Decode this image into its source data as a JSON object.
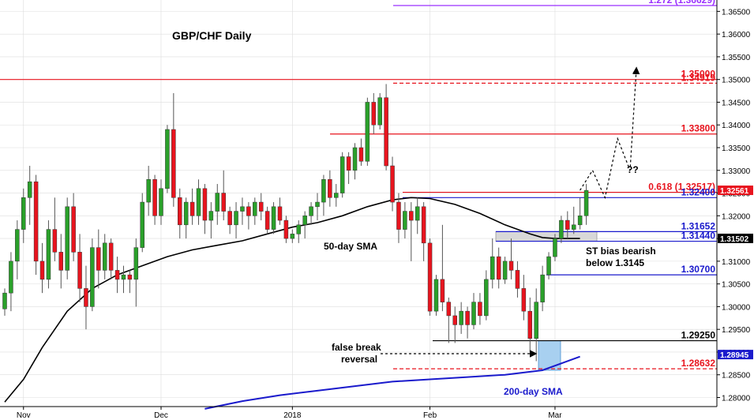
{
  "chart_data": {
    "type": "candlestick",
    "title": "GBP/CHF Daily",
    "ylim": [
      1.278,
      1.3675
    ],
    "yticks": [
      "1.28000",
      "1.28500",
      "1.29000",
      "1.29500",
      "1.30000",
      "1.30500",
      "1.31000",
      "1.31500",
      "1.32000",
      "1.32500",
      "1.33000",
      "1.33500",
      "1.34000",
      "1.34500",
      "1.35000",
      "1.35500",
      "1.36000",
      "1.36500"
    ],
    "xticks": [
      {
        "label": "Nov",
        "index": 3
      },
      {
        "label": "Dec",
        "index": 25
      },
      {
        "label": "2018",
        "index": 46
      },
      {
        "label": "Feb",
        "index": 68
      },
      {
        "label": "Mar",
        "index": 88
      }
    ],
    "candles": [
      {
        "o": 1.2995,
        "h": 1.304,
        "l": 1.298,
        "c": 1.303
      },
      {
        "o": 1.303,
        "h": 1.312,
        "l": 1.299,
        "c": 1.31
      },
      {
        "o": 1.31,
        "h": 1.319,
        "l": 1.306,
        "c": 1.317
      },
      {
        "o": 1.317,
        "h": 1.326,
        "l": 1.314,
        "c": 1.324
      },
      {
        "o": 1.324,
        "h": 1.331,
        "l": 1.318,
        "c": 1.3275
      },
      {
        "o": 1.3275,
        "h": 1.329,
        "l": 1.307,
        "c": 1.31
      },
      {
        "o": 1.31,
        "h": 1.314,
        "l": 1.303,
        "c": 1.306
      },
      {
        "o": 1.306,
        "h": 1.319,
        "l": 1.304,
        "c": 1.317
      },
      {
        "o": 1.317,
        "h": 1.324,
        "l": 1.31,
        "c": 1.312
      },
      {
        "o": 1.312,
        "h": 1.316,
        "l": 1.304,
        "c": 1.308
      },
      {
        "o": 1.308,
        "h": 1.324,
        "l": 1.306,
        "c": 1.322
      },
      {
        "o": 1.322,
        "h": 1.325,
        "l": 1.31,
        "c": 1.312
      },
      {
        "o": 1.312,
        "h": 1.316,
        "l": 1.301,
        "c": 1.304
      },
      {
        "o": 1.304,
        "h": 1.309,
        "l": 1.295,
        "c": 1.3
      },
      {
        "o": 1.3,
        "h": 1.315,
        "l": 1.299,
        "c": 1.313
      },
      {
        "o": 1.313,
        "h": 1.317,
        "l": 1.304,
        "c": 1.308
      },
      {
        "o": 1.308,
        "h": 1.316,
        "l": 1.306,
        "c": 1.314
      },
      {
        "o": 1.314,
        "h": 1.315,
        "l": 1.306,
        "c": 1.308
      },
      {
        "o": 1.308,
        "h": 1.311,
        "l": 1.303,
        "c": 1.306
      },
      {
        "o": 1.306,
        "h": 1.309,
        "l": 1.303,
        "c": 1.307
      },
      {
        "o": 1.307,
        "h": 1.308,
        "l": 1.303,
        "c": 1.306
      },
      {
        "o": 1.306,
        "h": 1.315,
        "l": 1.3,
        "c": 1.313
      },
      {
        "o": 1.313,
        "h": 1.325,
        "l": 1.312,
        "c": 1.323
      },
      {
        "o": 1.323,
        "h": 1.331,
        "l": 1.32,
        "c": 1.328
      },
      {
        "o": 1.328,
        "h": 1.329,
        "l": 1.318,
        "c": 1.32
      },
      {
        "o": 1.32,
        "h": 1.328,
        "l": 1.318,
        "c": 1.326
      },
      {
        "o": 1.326,
        "h": 1.34,
        "l": 1.325,
        "c": 1.339
      },
      {
        "o": 1.339,
        "h": 1.347,
        "l": 1.322,
        "c": 1.324
      },
      {
        "o": 1.324,
        "h": 1.326,
        "l": 1.315,
        "c": 1.318
      },
      {
        "o": 1.318,
        "h": 1.324,
        "l": 1.315,
        "c": 1.323
      },
      {
        "o": 1.323,
        "h": 1.326,
        "l": 1.318,
        "c": 1.32
      },
      {
        "o": 1.32,
        "h": 1.328,
        "l": 1.318,
        "c": 1.326
      },
      {
        "o": 1.326,
        "h": 1.327,
        "l": 1.316,
        "c": 1.319
      },
      {
        "o": 1.319,
        "h": 1.323,
        "l": 1.315,
        "c": 1.321
      },
      {
        "o": 1.321,
        "h": 1.327,
        "l": 1.318,
        "c": 1.325
      },
      {
        "o": 1.325,
        "h": 1.33,
        "l": 1.319,
        "c": 1.321
      },
      {
        "o": 1.321,
        "h": 1.322,
        "l": 1.316,
        "c": 1.318
      },
      {
        "o": 1.318,
        "h": 1.323,
        "l": 1.315,
        "c": 1.321
      },
      {
        "o": 1.321,
        "h": 1.324,
        "l": 1.318,
        "c": 1.322
      },
      {
        "o": 1.322,
        "h": 1.323,
        "l": 1.317,
        "c": 1.32
      },
      {
        "o": 1.32,
        "h": 1.324,
        "l": 1.318,
        "c": 1.323
      },
      {
        "o": 1.323,
        "h": 1.325,
        "l": 1.319,
        "c": 1.321
      },
      {
        "o": 1.321,
        "h": 1.322,
        "l": 1.316,
        "c": 1.317
      },
      {
        "o": 1.317,
        "h": 1.323,
        "l": 1.316,
        "c": 1.322
      },
      {
        "o": 1.322,
        "h": 1.324,
        "l": 1.318,
        "c": 1.319
      },
      {
        "o": 1.319,
        "h": 1.32,
        "l": 1.314,
        "c": 1.315
      },
      {
        "o": 1.315,
        "h": 1.317,
        "l": 1.314,
        "c": 1.316
      },
      {
        "o": 1.316,
        "h": 1.319,
        "l": 1.314,
        "c": 1.318
      },
      {
        "o": 1.318,
        "h": 1.321,
        "l": 1.315,
        "c": 1.32
      },
      {
        "o": 1.32,
        "h": 1.323,
        "l": 1.318,
        "c": 1.322
      },
      {
        "o": 1.322,
        "h": 1.325,
        "l": 1.319,
        "c": 1.323
      },
      {
        "o": 1.323,
        "h": 1.329,
        "l": 1.32,
        "c": 1.328
      },
      {
        "o": 1.328,
        "h": 1.33,
        "l": 1.322,
        "c": 1.324
      },
      {
        "o": 1.324,
        "h": 1.327,
        "l": 1.322,
        "c": 1.325
      },
      {
        "o": 1.325,
        "h": 1.334,
        "l": 1.324,
        "c": 1.333
      },
      {
        "o": 1.333,
        "h": 1.334,
        "l": 1.327,
        "c": 1.33
      },
      {
        "o": 1.33,
        "h": 1.336,
        "l": 1.328,
        "c": 1.335
      },
      {
        "o": 1.335,
        "h": 1.337,
        "l": 1.331,
        "c": 1.332
      },
      {
        "o": 1.332,
        "h": 1.346,
        "l": 1.331,
        "c": 1.345
      },
      {
        "o": 1.345,
        "h": 1.347,
        "l": 1.338,
        "c": 1.34
      },
      {
        "o": 1.34,
        "h": 1.347,
        "l": 1.339,
        "c": 1.346
      },
      {
        "o": 1.346,
        "h": 1.349,
        "l": 1.33,
        "c": 1.331
      },
      {
        "o": 1.331,
        "h": 1.333,
        "l": 1.321,
        "c": 1.323
      },
      {
        "o": 1.323,
        "h": 1.325,
        "l": 1.314,
        "c": 1.317
      },
      {
        "o": 1.317,
        "h": 1.323,
        "l": 1.315,
        "c": 1.321
      },
      {
        "o": 1.321,
        "h": 1.323,
        "l": 1.31,
        "c": 1.319
      },
      {
        "o": 1.319,
        "h": 1.324,
        "l": 1.316,
        "c": 1.322
      },
      {
        "o": 1.322,
        "h": 1.323,
        "l": 1.31,
        "c": 1.314
      },
      {
        "o": 1.314,
        "h": 1.315,
        "l": 1.298,
        "c": 1.299
      },
      {
        "o": 1.299,
        "h": 1.307,
        "l": 1.298,
        "c": 1.306
      },
      {
        "o": 1.306,
        "h": 1.318,
        "l": 1.299,
        "c": 1.301
      },
      {
        "o": 1.301,
        "h": 1.302,
        "l": 1.292,
        "c": 1.298
      },
      {
        "o": 1.298,
        "h": 1.3,
        "l": 1.292,
        "c": 1.296
      },
      {
        "o": 1.296,
        "h": 1.301,
        "l": 1.294,
        "c": 1.299
      },
      {
        "o": 1.299,
        "h": 1.3,
        "l": 1.293,
        "c": 1.296
      },
      {
        "o": 1.296,
        "h": 1.303,
        "l": 1.295,
        "c": 1.301
      },
      {
        "o": 1.301,
        "h": 1.303,
        "l": 1.296,
        "c": 1.298
      },
      {
        "o": 1.298,
        "h": 1.308,
        "l": 1.297,
        "c": 1.306
      },
      {
        "o": 1.306,
        "h": 1.315,
        "l": 1.304,
        "c": 1.311
      },
      {
        "o": 1.311,
        "h": 1.313,
        "l": 1.304,
        "c": 1.306
      },
      {
        "o": 1.306,
        "h": 1.311,
        "l": 1.305,
        "c": 1.31
      },
      {
        "o": 1.31,
        "h": 1.315,
        "l": 1.306,
        "c": 1.308
      },
      {
        "o": 1.308,
        "h": 1.31,
        "l": 1.302,
        "c": 1.304
      },
      {
        "o": 1.304,
        "h": 1.307,
        "l": 1.297,
        "c": 1.299
      },
      {
        "o": 1.299,
        "h": 1.302,
        "l": 1.29,
        "c": 1.293
      },
      {
        "o": 1.293,
        "h": 1.304,
        "l": 1.288,
        "c": 1.301
      },
      {
        "o": 1.301,
        "h": 1.309,
        "l": 1.299,
        "c": 1.307
      },
      {
        "o": 1.307,
        "h": 1.312,
        "l": 1.306,
        "c": 1.311
      },
      {
        "o": 1.311,
        "h": 1.316,
        "l": 1.31,
        "c": 1.315
      },
      {
        "o": 1.315,
        "h": 1.32,
        "l": 1.314,
        "c": 1.319
      },
      {
        "o": 1.319,
        "h": 1.321,
        "l": 1.315,
        "c": 1.317
      },
      {
        "o": 1.317,
        "h": 1.322,
        "l": 1.316,
        "c": 1.318
      },
      {
        "o": 1.318,
        "h": 1.324,
        "l": 1.317,
        "c": 1.32
      },
      {
        "o": 1.32,
        "h": 1.327,
        "l": 1.318,
        "c": 1.3256
      }
    ],
    "sma50": [
      [
        0,
        1.279
      ],
      [
        3,
        1.284
      ],
      [
        6,
        1.291
      ],
      [
        10,
        1.299
      ],
      [
        14,
        1.304
      ],
      [
        18,
        1.307
      ],
      [
        22,
        1.309
      ],
      [
        26,
        1.311
      ],
      [
        30,
        1.3125
      ],
      [
        34,
        1.3135
      ],
      [
        38,
        1.3145
      ],
      [
        42,
        1.316
      ],
      [
        46,
        1.3175
      ],
      [
        50,
        1.3185
      ],
      [
        54,
        1.32
      ],
      [
        58,
        1.322
      ],
      [
        62,
        1.3235
      ],
      [
        65,
        1.324
      ],
      [
        68,
        1.3238
      ],
      [
        72,
        1.3225
      ],
      [
        76,
        1.3205
      ],
      [
        80,
        1.318
      ],
      [
        84,
        1.316
      ],
      [
        86,
        1.3152
      ],
      [
        88,
        1.315
      ],
      [
        92,
        1.315
      ]
    ],
    "sma200": [
      [
        32,
        1.2775
      ],
      [
        38,
        1.2792
      ],
      [
        44,
        1.2805
      ],
      [
        50,
        1.2815
      ],
      [
        56,
        1.2825
      ],
      [
        62,
        1.2835
      ],
      [
        68,
        1.284
      ],
      [
        74,
        1.2845
      ],
      [
        80,
        1.285
      ],
      [
        86,
        1.286
      ],
      [
        92,
        1.289
      ]
    ],
    "levels": [
      {
        "label": "1.272 (1.36629)",
        "value": 1.36629,
        "color": "#9b30ff",
        "style": "solid"
      },
      {
        "label": "1.35000",
        "value": 1.35,
        "color": "#e8141e",
        "style": "solid"
      },
      {
        "label": "1.34919",
        "value": 1.34919,
        "color": "#e8141e",
        "style": "dashed"
      },
      {
        "label": "1.33800",
        "value": 1.338,
        "color": "#e8141e",
        "style": "solid"
      },
      {
        "label": "0.618 (1.32517)",
        "value": 1.32517,
        "color": "#e8141e",
        "style": "solid"
      },
      {
        "label": "1.32400",
        "value": 1.324,
        "color": "#1a1acc",
        "style": "solid"
      },
      {
        "label": "1.31652",
        "value": 1.31652,
        "color": "#1a1acc",
        "style": "solid"
      },
      {
        "label": "1.31440",
        "value": 1.3144,
        "color": "#1a1acc",
        "style": "solid"
      },
      {
        "label": "1.30700",
        "value": 1.307,
        "color": "#1a1acc",
        "style": "solid"
      },
      {
        "label": "1.29250",
        "value": 1.2925,
        "color": "#000000",
        "style": "solid"
      },
      {
        "label": "1.28632",
        "value": 1.28632,
        "color": "#e8141e",
        "style": "dashed"
      }
    ],
    "tags": [
      {
        "label": "1.32561",
        "value": 1.32561,
        "bg": "#e8141e",
        "fg": "#ffffff"
      },
      {
        "label": "1.31502",
        "value": 1.31502,
        "bg": "#000000",
        "fg": "#ffffff"
      },
      {
        "label": "1.28945",
        "value": 1.28945,
        "bg": "#1a1acc",
        "fg": "#ffffff"
      }
    ],
    "annotations": {
      "sma50_label": "50-day SMA",
      "sma200_label": "200-day SMA",
      "st_bias_line1": "ST bias bearish",
      "st_bias_line2": "below 1.3145",
      "false_break_line1": "false break",
      "false_break_line2": "reversal",
      "question": "??"
    },
    "projection": [
      [
        92,
        1.3256
      ],
      [
        94,
        1.33
      ],
      [
        96,
        1.324
      ],
      [
        98,
        1.337
      ],
      [
        100,
        1.33
      ],
      [
        101,
        1.352
      ]
    ],
    "colors": {
      "up": "#2aa02a",
      "down": "#e8141e",
      "sma50": "#000000",
      "sma200": "#1a1acc",
      "grid": "#dddddd"
    }
  }
}
